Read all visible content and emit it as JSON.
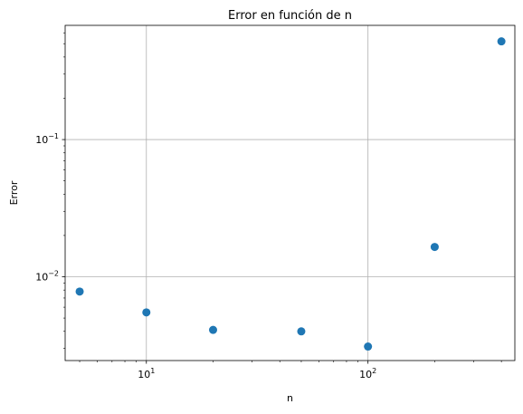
{
  "chart_data": {
    "type": "scatter",
    "title": "Error en función de n",
    "xlabel": "n",
    "ylabel": "Error",
    "x_scale": "log",
    "y_scale": "log",
    "xlim": [
      4.3,
      460
    ],
    "ylim": [
      0.00245,
      0.68
    ],
    "grid": true,
    "x_tick_labels": [
      {
        "value": 10,
        "base": "10",
        "exp": "1"
      },
      {
        "value": 100,
        "base": "10",
        "exp": "2"
      }
    ],
    "y_tick_labels": [
      {
        "value": 0.01,
        "base": "10",
        "exp": "−2"
      },
      {
        "value": 0.1,
        "base": "10",
        "exp": "−1"
      }
    ],
    "series": [
      {
        "color": "#1f77b4",
        "x": [
          5,
          10,
          20,
          50,
          100,
          200,
          400
        ],
        "y": [
          0.0078,
          0.0055,
          0.0041,
          0.004,
          0.0031,
          0.0165,
          0.52
        ]
      }
    ]
  },
  "colors": {
    "axes": "#000000",
    "grid": "#b0b0b0",
    "marker": "#1f77b4"
  }
}
